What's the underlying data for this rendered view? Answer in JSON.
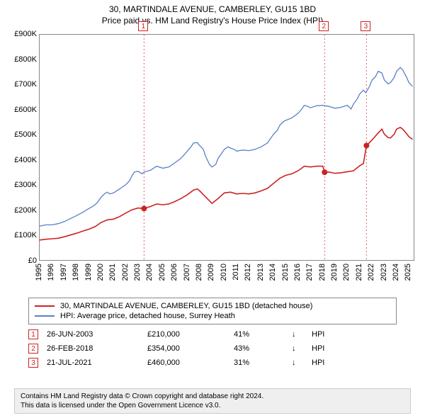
{
  "title": {
    "line1": "30, MARTINDALE AVENUE, CAMBERLEY, GU15 1BD",
    "line2": "Price paid vs. HM Land Registry's House Price Index (HPI)",
    "fontsize": 12
  },
  "chart": {
    "type": "line",
    "xlim": [
      1995,
      2025.5
    ],
    "ylim": [
      0,
      900000
    ],
    "ytick_step": 100000,
    "ytick_labels": [
      "£0",
      "£100K",
      "£200K",
      "£300K",
      "£400K",
      "£500K",
      "£600K",
      "£700K",
      "£800K",
      "£900K"
    ],
    "xtick_years": [
      1995,
      1996,
      1997,
      1998,
      1999,
      2000,
      2001,
      2002,
      2003,
      2004,
      2005,
      2006,
      2007,
      2008,
      2009,
      2010,
      2011,
      2012,
      2013,
      2014,
      2015,
      2016,
      2017,
      2018,
      2019,
      2020,
      2021,
      2022,
      2023,
      2024,
      2025
    ],
    "background_color": "#ffffff",
    "axis_color": "#888888",
    "series": [
      {
        "name": "hpi",
        "color": "#5b7fc7",
        "width": 1.3,
        "points": [
          [
            1995,
            140000
          ],
          [
            1995.5,
            145000
          ],
          [
            1996,
            145000
          ],
          [
            1996.5,
            150000
          ],
          [
            1997,
            158000
          ],
          [
            1997.5,
            170000
          ],
          [
            1998,
            182000
          ],
          [
            1998.5,
            195000
          ],
          [
            1999,
            210000
          ],
          [
            1999.3,
            218000
          ],
          [
            1999.5,
            225000
          ],
          [
            1999.7,
            235000
          ],
          [
            2000,
            255000
          ],
          [
            2000.3,
            270000
          ],
          [
            2000.5,
            275000
          ],
          [
            2000.7,
            268000
          ],
          [
            2001,
            272000
          ],
          [
            2001.5,
            288000
          ],
          [
            2002,
            305000
          ],
          [
            2002.3,
            320000
          ],
          [
            2002.5,
            340000
          ],
          [
            2002.7,
            355000
          ],
          [
            2003,
            358000
          ],
          [
            2003.3,
            348000
          ],
          [
            2003.5,
            355000
          ],
          [
            2004,
            362000
          ],
          [
            2004.5,
            378000
          ],
          [
            2005,
            370000
          ],
          [
            2005.5,
            375000
          ],
          [
            2006,
            392000
          ],
          [
            2006.5,
            410000
          ],
          [
            2007,
            438000
          ],
          [
            2007.3,
            455000
          ],
          [
            2007.5,
            470000
          ],
          [
            2007.8,
            472000
          ],
          [
            2008,
            460000
          ],
          [
            2008.3,
            445000
          ],
          [
            2008.5,
            415000
          ],
          [
            2008.8,
            385000
          ],
          [
            2009,
            375000
          ],
          [
            2009.3,
            385000
          ],
          [
            2009.5,
            410000
          ],
          [
            2009.8,
            430000
          ],
          [
            2010,
            445000
          ],
          [
            2010.3,
            455000
          ],
          [
            2010.5,
            450000
          ],
          [
            2010.8,
            445000
          ],
          [
            2011,
            438000
          ],
          [
            2011.5,
            442000
          ],
          [
            2012,
            440000
          ],
          [
            2012.5,
            445000
          ],
          [
            2013,
            455000
          ],
          [
            2013.5,
            470000
          ],
          [
            2014,
            505000
          ],
          [
            2014.3,
            520000
          ],
          [
            2014.5,
            540000
          ],
          [
            2014.8,
            555000
          ],
          [
            2015,
            560000
          ],
          [
            2015.5,
            570000
          ],
          [
            2016,
            588000
          ],
          [
            2016.3,
            605000
          ],
          [
            2016.5,
            620000
          ],
          [
            2016.8,
            615000
          ],
          [
            2017,
            610000
          ],
          [
            2017.5,
            618000
          ],
          [
            2018,
            620000
          ],
          [
            2018.5,
            615000
          ],
          [
            2019,
            608000
          ],
          [
            2019.5,
            612000
          ],
          [
            2020,
            620000
          ],
          [
            2020.3,
            605000
          ],
          [
            2020.5,
            625000
          ],
          [
            2020.8,
            645000
          ],
          [
            2021,
            665000
          ],
          [
            2021.3,
            680000
          ],
          [
            2021.5,
            670000
          ],
          [
            2021.8,
            695000
          ],
          [
            2022,
            720000
          ],
          [
            2022.3,
            735000
          ],
          [
            2022.5,
            755000
          ],
          [
            2022.8,
            748000
          ],
          [
            2023,
            720000
          ],
          [
            2023.3,
            705000
          ],
          [
            2023.5,
            710000
          ],
          [
            2023.8,
            730000
          ],
          [
            2024,
            755000
          ],
          [
            2024.3,
            770000
          ],
          [
            2024.5,
            760000
          ],
          [
            2024.8,
            732000
          ],
          [
            2025,
            710000
          ],
          [
            2025.3,
            695000
          ]
        ]
      },
      {
        "name": "price_paid",
        "color": "#cc2222",
        "width": 1.6,
        "points": [
          [
            1995,
            85000
          ],
          [
            1995.5,
            88000
          ],
          [
            1996,
            90000
          ],
          [
            1996.5,
            92000
          ],
          [
            1997,
            98000
          ],
          [
            1997.5,
            105000
          ],
          [
            1998,
            112000
          ],
          [
            1998.5,
            120000
          ],
          [
            1999,
            128000
          ],
          [
            1999.5,
            138000
          ],
          [
            2000,
            155000
          ],
          [
            2000.5,
            165000
          ],
          [
            2001,
            168000
          ],
          [
            2001.5,
            178000
          ],
          [
            2002,
            192000
          ],
          [
            2002.5,
            205000
          ],
          [
            2003,
            212000
          ],
          [
            2003.48,
            210000
          ],
          [
            2004,
            218000
          ],
          [
            2004.5,
            228000
          ],
          [
            2005,
            225000
          ],
          [
            2005.5,
            228000
          ],
          [
            2006,
            238000
          ],
          [
            2006.5,
            250000
          ],
          [
            2007,
            265000
          ],
          [
            2007.5,
            283000
          ],
          [
            2007.8,
            288000
          ],
          [
            2008,
            280000
          ],
          [
            2008.5,
            255000
          ],
          [
            2009,
            230000
          ],
          [
            2009.5,
            250000
          ],
          [
            2010,
            272000
          ],
          [
            2010.5,
            275000
          ],
          [
            2011,
            268000
          ],
          [
            2011.5,
            270000
          ],
          [
            2012,
            268000
          ],
          [
            2012.5,
            272000
          ],
          [
            2013,
            280000
          ],
          [
            2013.5,
            290000
          ],
          [
            2014,
            310000
          ],
          [
            2014.5,
            330000
          ],
          [
            2015,
            342000
          ],
          [
            2015.5,
            348000
          ],
          [
            2016,
            360000
          ],
          [
            2016.5,
            378000
          ],
          [
            2017,
            375000
          ],
          [
            2017.5,
            378000
          ],
          [
            2018,
            378000
          ],
          [
            2018.15,
            354000
          ],
          [
            2018.5,
            355000
          ],
          [
            2019,
            350000
          ],
          [
            2019.5,
            352000
          ],
          [
            2020,
            356000
          ],
          [
            2020.5,
            360000
          ],
          [
            2021,
            380000
          ],
          [
            2021.3,
            388000
          ],
          [
            2021.55,
            460000
          ],
          [
            2022,
            482000
          ],
          [
            2022.5,
            510000
          ],
          [
            2022.8,
            525000
          ],
          [
            2023,
            505000
          ],
          [
            2023.3,
            492000
          ],
          [
            2023.5,
            490000
          ],
          [
            2023.8,
            505000
          ],
          [
            2024,
            525000
          ],
          [
            2024.3,
            532000
          ],
          [
            2024.5,
            525000
          ],
          [
            2024.8,
            508000
          ],
          [
            2025,
            495000
          ],
          [
            2025.3,
            485000
          ]
        ]
      }
    ],
    "sale_markers": [
      {
        "idx": "1",
        "x": 2003.48,
        "y": 210000,
        "color": "#cc2222"
      },
      {
        "idx": "2",
        "x": 2018.15,
        "y": 354000,
        "color": "#cc2222"
      },
      {
        "idx": "3",
        "x": 2021.55,
        "y": 460000,
        "color": "#cc2222"
      }
    ],
    "vlines": [
      {
        "x": 2003.48,
        "color": "#cc2222"
      },
      {
        "x": 2018.15,
        "color": "#cc2222"
      },
      {
        "x": 2021.55,
        "color": "#cc2222"
      }
    ]
  },
  "legend": {
    "items": [
      {
        "color": "#cc2222",
        "label": "30, MARTINDALE AVENUE, CAMBERLEY, GU15 1BD (detached house)"
      },
      {
        "color": "#5b7fc7",
        "label": "HPI: Average price, detached house, Surrey Heath"
      }
    ]
  },
  "sales": [
    {
      "idx": "1",
      "color": "#cc2222",
      "date": "26-JUN-2003",
      "price": "£210,000",
      "pct": "41%",
      "arrow": "↓",
      "vs": "HPI"
    },
    {
      "idx": "2",
      "color": "#cc2222",
      "date": "26-FEB-2018",
      "price": "£354,000",
      "pct": "43%",
      "arrow": "↓",
      "vs": "HPI"
    },
    {
      "idx": "3",
      "color": "#cc2222",
      "date": "21-JUL-2021",
      "price": "£460,000",
      "pct": "31%",
      "arrow": "↓",
      "vs": "HPI"
    }
  ],
  "footer": {
    "line1": "Contains HM Land Registry data © Crown copyright and database right 2024.",
    "line2": "This data is licensed under the Open Government Licence v3.0."
  }
}
